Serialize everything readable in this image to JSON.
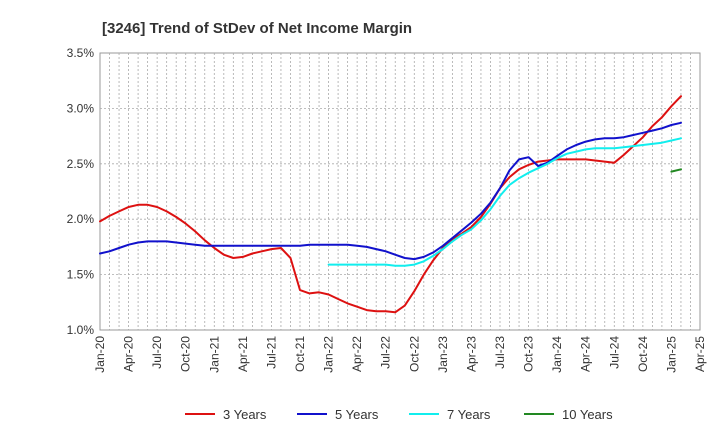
{
  "chart_data": {
    "type": "line",
    "title": "[3246]  Trend of StDev of Net Income Margin",
    "xlabel": "",
    "ylabel": "",
    "x_tick_labels": [
      "Jan-20",
      "Apr-20",
      "Jul-20",
      "Oct-20",
      "Jan-21",
      "Apr-21",
      "Jul-21",
      "Oct-21",
      "Jan-22",
      "Apr-22",
      "Jul-22",
      "Oct-22",
      "Jan-23",
      "Apr-23",
      "Jul-23",
      "Oct-23",
      "Jan-24",
      "Apr-24",
      "Jul-24",
      "Oct-24",
      "Jan-25",
      "Apr-25"
    ],
    "y_tick_labels": [
      "1.0%",
      "1.5%",
      "2.0%",
      "2.5%",
      "3.0%",
      "3.5%"
    ],
    "ylim": [
      1.0,
      3.5
    ],
    "y_unit": "%",
    "grid": true,
    "legend_position": "bottom",
    "series": [
      {
        "name": "3 Years",
        "color": "#dd1111",
        "points": [
          [
            "Jan-20",
            1.98
          ],
          [
            "Feb-20",
            2.03
          ],
          [
            "Mar-20",
            2.07
          ],
          [
            "Apr-20",
            2.11
          ],
          [
            "May-20",
            2.13
          ],
          [
            "Jun-20",
            2.13
          ],
          [
            "Jul-20",
            2.11
          ],
          [
            "Aug-20",
            2.07
          ],
          [
            "Sep-20",
            2.02
          ],
          [
            "Oct-20",
            1.96
          ],
          [
            "Nov-20",
            1.89
          ],
          [
            "Dec-20",
            1.81
          ],
          [
            "Jan-21",
            1.74
          ],
          [
            "Feb-21",
            1.68
          ],
          [
            "Mar-21",
            1.65
          ],
          [
            "Apr-21",
            1.66
          ],
          [
            "May-21",
            1.69
          ],
          [
            "Jun-21",
            1.71
          ],
          [
            "Jul-21",
            1.73
          ],
          [
            "Aug-21",
            1.74
          ],
          [
            "Sep-21",
            1.65
          ],
          [
            "Oct-21",
            1.36
          ],
          [
            "Nov-21",
            1.33
          ],
          [
            "Dec-21",
            1.34
          ],
          [
            "Jan-22",
            1.32
          ],
          [
            "Feb-22",
            1.28
          ],
          [
            "Mar-22",
            1.24
          ],
          [
            "Apr-22",
            1.21
          ],
          [
            "May-22",
            1.18
          ],
          [
            "Jun-22",
            1.17
          ],
          [
            "Jul-22",
            1.17
          ],
          [
            "Aug-22",
            1.16
          ],
          [
            "Sep-22",
            1.22
          ],
          [
            "Oct-22",
            1.35
          ],
          [
            "Nov-22",
            1.5
          ],
          [
            "Dec-22",
            1.63
          ],
          [
            "Jan-23",
            1.74
          ],
          [
            "Feb-23",
            1.82
          ],
          [
            "Mar-23",
            1.87
          ],
          [
            "Apr-23",
            1.93
          ],
          [
            "May-23",
            2.02
          ],
          [
            "Jun-23",
            2.14
          ],
          [
            "Jul-23",
            2.28
          ],
          [
            "Aug-23",
            2.38
          ],
          [
            "Sep-23",
            2.45
          ],
          [
            "Oct-23",
            2.49
          ],
          [
            "Nov-23",
            2.52
          ],
          [
            "Dec-23",
            2.53
          ],
          [
            "Jan-24",
            2.54
          ],
          [
            "Feb-24",
            2.54
          ],
          [
            "Mar-24",
            2.54
          ],
          [
            "Apr-24",
            2.54
          ],
          [
            "May-24",
            2.53
          ],
          [
            "Jun-24",
            2.52
          ],
          [
            "Jul-24",
            2.51
          ],
          [
            "Aug-24",
            2.58
          ],
          [
            "Sep-24",
            2.66
          ],
          [
            "Oct-24",
            2.74
          ],
          [
            "Nov-24",
            2.84
          ],
          [
            "Dec-24",
            2.92
          ],
          [
            "Jan-25",
            3.02
          ],
          [
            "Feb-25",
            3.11
          ]
        ]
      },
      {
        "name": "5 Years",
        "color": "#1111cc",
        "points": [
          [
            "Jan-20",
            1.69
          ],
          [
            "Feb-20",
            1.71
          ],
          [
            "Mar-20",
            1.74
          ],
          [
            "Apr-20",
            1.77
          ],
          [
            "May-20",
            1.79
          ],
          [
            "Jun-20",
            1.8
          ],
          [
            "Jul-20",
            1.8
          ],
          [
            "Aug-20",
            1.8
          ],
          [
            "Sep-20",
            1.79
          ],
          [
            "Oct-20",
            1.78
          ],
          [
            "Nov-20",
            1.77
          ],
          [
            "Dec-20",
            1.76
          ],
          [
            "Jan-21",
            1.76
          ],
          [
            "Feb-21",
            1.76
          ],
          [
            "Mar-21",
            1.76
          ],
          [
            "Apr-21",
            1.76
          ],
          [
            "May-21",
            1.76
          ],
          [
            "Jun-21",
            1.76
          ],
          [
            "Jul-21",
            1.76
          ],
          [
            "Aug-21",
            1.76
          ],
          [
            "Sep-21",
            1.76
          ],
          [
            "Oct-21",
            1.76
          ],
          [
            "Nov-21",
            1.77
          ],
          [
            "Dec-21",
            1.77
          ],
          [
            "Jan-22",
            1.77
          ],
          [
            "Feb-22",
            1.77
          ],
          [
            "Mar-22",
            1.77
          ],
          [
            "Apr-22",
            1.76
          ],
          [
            "May-22",
            1.75
          ],
          [
            "Jun-22",
            1.73
          ],
          [
            "Jul-22",
            1.71
          ],
          [
            "Aug-22",
            1.68
          ],
          [
            "Sep-22",
            1.65
          ],
          [
            "Oct-22",
            1.64
          ],
          [
            "Nov-22",
            1.66
          ],
          [
            "Dec-22",
            1.7
          ],
          [
            "Jan-23",
            1.76
          ],
          [
            "Feb-23",
            1.83
          ],
          [
            "Mar-23",
            1.9
          ],
          [
            "Apr-23",
            1.97
          ],
          [
            "May-23",
            2.05
          ],
          [
            "Jun-23",
            2.15
          ],
          [
            "Jul-23",
            2.28
          ],
          [
            "Aug-23",
            2.44
          ],
          [
            "Sep-23",
            2.54
          ],
          [
            "Oct-23",
            2.56
          ],
          [
            "Nov-23",
            2.48
          ],
          [
            "Dec-23",
            2.51
          ],
          [
            "Jan-24",
            2.57
          ],
          [
            "Feb-24",
            2.63
          ],
          [
            "Mar-24",
            2.67
          ],
          [
            "Apr-24",
            2.7
          ],
          [
            "May-24",
            2.72
          ],
          [
            "Jun-24",
            2.73
          ],
          [
            "Jul-24",
            2.73
          ],
          [
            "Aug-24",
            2.74
          ],
          [
            "Sep-24",
            2.76
          ],
          [
            "Oct-24",
            2.78
          ],
          [
            "Nov-24",
            2.8
          ],
          [
            "Dec-24",
            2.82
          ],
          [
            "Jan-25",
            2.85
          ],
          [
            "Feb-25",
            2.87
          ]
        ]
      },
      {
        "name": "7 Years",
        "color": "#11eeee",
        "points": [
          [
            "Jan-22",
            1.59
          ],
          [
            "Feb-22",
            1.59
          ],
          [
            "Mar-22",
            1.59
          ],
          [
            "Apr-22",
            1.59
          ],
          [
            "May-22",
            1.59
          ],
          [
            "Jun-22",
            1.59
          ],
          [
            "Jul-22",
            1.59
          ],
          [
            "Aug-22",
            1.58
          ],
          [
            "Sep-22",
            1.58
          ],
          [
            "Oct-22",
            1.59
          ],
          [
            "Nov-22",
            1.62
          ],
          [
            "Dec-22",
            1.67
          ],
          [
            "Jan-23",
            1.73
          ],
          [
            "Feb-23",
            1.8
          ],
          [
            "Mar-23",
            1.86
          ],
          [
            "Apr-23",
            1.91
          ],
          [
            "May-23",
            1.99
          ],
          [
            "Jun-23",
            2.09
          ],
          [
            "Jul-23",
            2.21
          ],
          [
            "Aug-23",
            2.31
          ],
          [
            "Sep-23",
            2.37
          ],
          [
            "Oct-23",
            2.42
          ],
          [
            "Nov-23",
            2.46
          ],
          [
            "Dec-23",
            2.5
          ],
          [
            "Jan-24",
            2.55
          ],
          [
            "Feb-24",
            2.59
          ],
          [
            "Mar-24",
            2.61
          ],
          [
            "Apr-24",
            2.63
          ],
          [
            "May-24",
            2.64
          ],
          [
            "Jun-24",
            2.64
          ],
          [
            "Jul-24",
            2.64
          ],
          [
            "Aug-24",
            2.65
          ],
          [
            "Sep-24",
            2.66
          ],
          [
            "Oct-24",
            2.67
          ],
          [
            "Nov-24",
            2.68
          ],
          [
            "Dec-24",
            2.69
          ],
          [
            "Jan-25",
            2.71
          ],
          [
            "Feb-25",
            2.73
          ]
        ]
      },
      {
        "name": "10 Years",
        "color": "#228822",
        "points": [
          [
            "Jan-25",
            2.43
          ],
          [
            "Feb-25",
            2.45
          ]
        ]
      }
    ]
  }
}
